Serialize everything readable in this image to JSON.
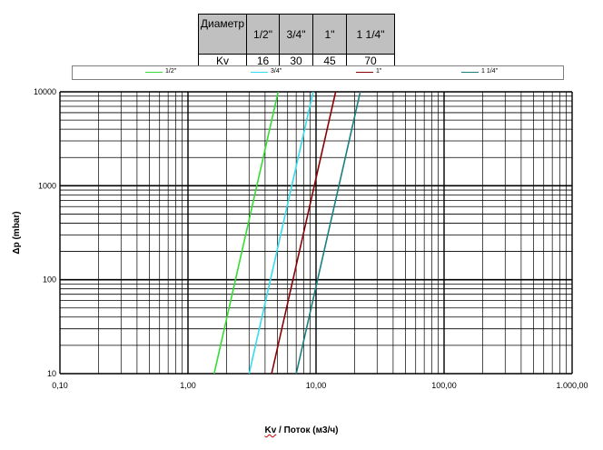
{
  "kv_table": {
    "row1_label": "Диаметр",
    "row2_label": "Kv",
    "columns": [
      "1/2\"",
      "3/4\"",
      "1\"",
      "1 1/4\""
    ],
    "values": [
      "16",
      "30",
      "45",
      "70"
    ]
  },
  "chart_data": {
    "type": "line",
    "x_scale": "log",
    "y_scale": "log",
    "xlim": [
      0.1,
      1000
    ],
    "ylim": [
      10,
      10000
    ],
    "x_tick_labels": [
      "0,10",
      "1,00",
      "10,00",
      "100,00",
      "1.000,00"
    ],
    "y_tick_labels": [
      "10",
      "100",
      "1000",
      "10000"
    ],
    "ylabel": "Δp  (mbar)",
    "xlabel_kv": "Kv",
    "xlabel_rest": " / Поток (м3/ч)",
    "grid": true,
    "legend_placement": "top",
    "series": [
      {
        "name": "1/2\"",
        "color": "#33dd33",
        "kv": 16,
        "x": [
          1.6,
          5.06
        ],
        "y": [
          10,
          10000
        ]
      },
      {
        "name": "3/4\"",
        "color": "#33ddee",
        "kv": 30,
        "x": [
          3.0,
          9.49
        ],
        "y": [
          10,
          10000
        ]
      },
      {
        "name": "1\"",
        "color": "#8b0000",
        "kv": 45,
        "x": [
          4.5,
          14.23
        ],
        "y": [
          10,
          10000
        ]
      },
      {
        "name": "1 1/4\"",
        "color": "#1a7f7f",
        "kv": 70,
        "x": [
          7.0,
          22.14
        ],
        "y": [
          10,
          10000
        ]
      }
    ]
  }
}
